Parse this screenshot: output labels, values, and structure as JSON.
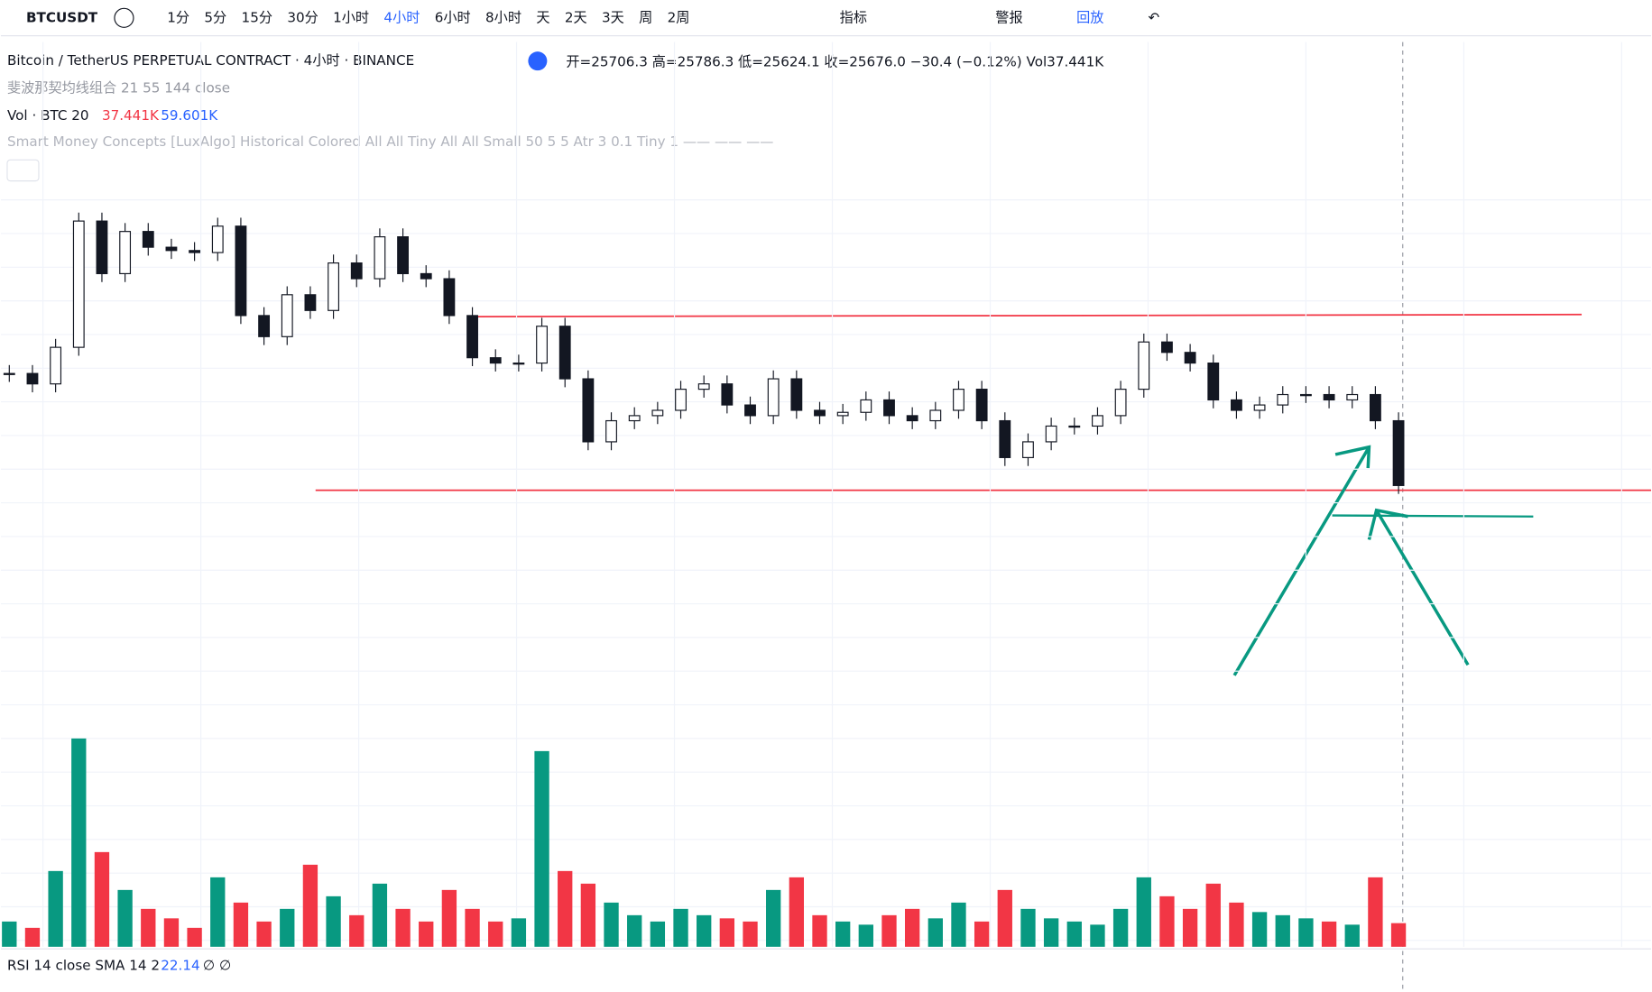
{
  "toolbar": {
    "symbol": "BTCUSDT",
    "intervals": [
      "1分",
      "5分",
      "15分",
      "30分",
      "1小时",
      "4小时",
      "6小时",
      "8小时",
      "天",
      "2天",
      "3天",
      "周",
      "2周"
    ],
    "active_interval": "4小时",
    "indicators": "指标",
    "alerts": "警报",
    "replay": "回放"
  },
  "legend": {
    "title": "Bitcoin / TetherUS PERPETUAL CONTRACT · 4小时 · BINANCE",
    "ohlc": "开=25706.3 高=25786.3 低=25624.1 收=25676.0 −30.4 (−0.12%) Vol37.441K",
    "fib": "斐波那契均线组合 21 55 144 close",
    "vol_label": "Vol · BTC 20",
    "vol_value": "37.441K",
    "vol_ma": "59.601K",
    "smc": "Smart Money Concepts [LuxAlgo] Historical Colored All All Tiny All All Small 50 5 5 Atr 3 0.1 Tiny 1 —— —— ——"
  },
  "chart_data": {
    "type": "candlestick",
    "closes": [
      26117,
      26076,
      26220,
      26717,
      26510,
      26676,
      26614,
      26601,
      26593,
      26697,
      26345,
      26262,
      26427,
      26365,
      26552,
      26490,
      26655,
      26510,
      26490,
      26345,
      26179,
      26158,
      26158,
      26303,
      26096,
      25848,
      25931,
      25951,
      25972,
      26055,
      26076,
      25993,
      25951,
      26096,
      25972,
      25951,
      25964,
      26013,
      25951,
      25931,
      25972,
      26055,
      25931,
      25786,
      25848,
      25910,
      25910,
      25951,
      26055,
      26241,
      26200,
      26158,
      26013,
      25972,
      25993,
      26034,
      26034,
      26013,
      26034,
      25931,
      25676
    ],
    "volumes": [
      40,
      30,
      120,
      330,
      150,
      90,
      60,
      45,
      30,
      110,
      70,
      40,
      60,
      130,
      80,
      50,
      100,
      60,
      40,
      90,
      60,
      40,
      45,
      310,
      120,
      100,
      70,
      50,
      40,
      60,
      50,
      45,
      40,
      90,
      110,
      50,
      40,
      35,
      50,
      60,
      45,
      70,
      40,
      90,
      60,
      45,
      40,
      35,
      60,
      110,
      80,
      60,
      100,
      70,
      55,
      50,
      45,
      40,
      35,
      110,
      37.441
    ],
    "ylim": [
      24730,
      26966
    ],
    "vol_ylim": [
      0,
      350
    ],
    "up_color": "#089981",
    "down_color": "#f23645"
  },
  "rsi": {
    "label": "RSI 14 close SMA 14 2",
    "value": "22.14",
    "extra": "∅ ∅"
  }
}
